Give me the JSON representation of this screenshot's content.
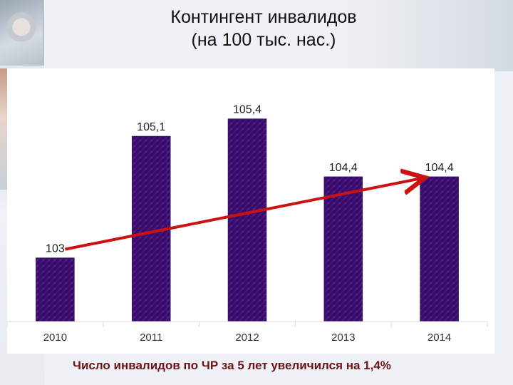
{
  "title": {
    "line1": "Контингент инвалидов",
    "line2": "(на 100 тыс. нас.)"
  },
  "chart_data": {
    "type": "bar",
    "categories": [
      "2010",
      "2011",
      "2012",
      "2013",
      "2014"
    ],
    "values": [
      103,
      105.1,
      105.4,
      104.4,
      104.4
    ],
    "value_labels": [
      "103",
      "105,1",
      "105,4",
      "104,4",
      "104,4"
    ],
    "ylim": [
      101.9,
      105.9
    ],
    "grid": false,
    "legend": "none",
    "bar_color": "#3a0d6b",
    "bar_texture_color": "#6a2aa8",
    "trend_arrow": {
      "from": "2010",
      "to": "2014",
      "color": "#cc1111"
    }
  },
  "caption": "Число инвалидов по ЧР за 5 лет увеличился на 1,4%",
  "colors": {
    "caption": "#6e1414",
    "axis": "#d9d9d9"
  }
}
